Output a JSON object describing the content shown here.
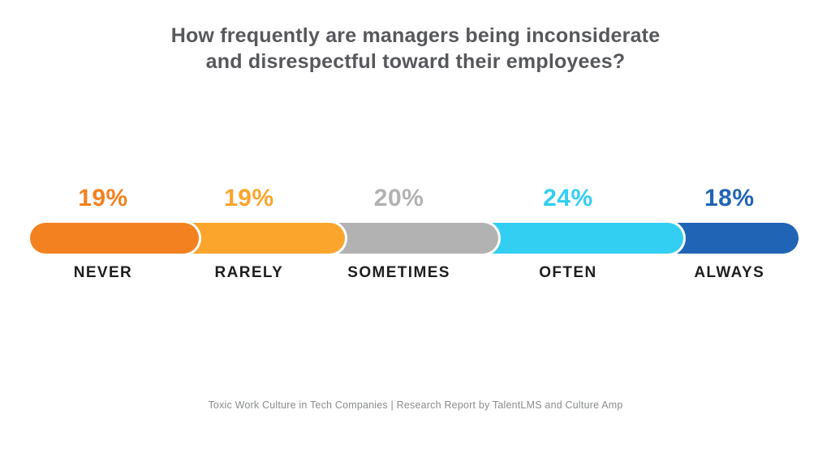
{
  "title_lines": [
    "How frequently are managers being inconsiderate",
    "and disrespectful toward their employees?"
  ],
  "caption": "Toxic Work Culture in Tech Companies | Research Report by TalentLMS and Culture Amp",
  "colors": {
    "background": "#FFFFFF",
    "title_text": "#57585C",
    "category_text": "#1E1E1E",
    "caption_text": "#8A8C8E",
    "segment_divider": "#FFFFFF"
  },
  "chart_data": {
    "type": "bar",
    "subtype": "segmented-horizontal-100-percent",
    "title": "How frequently are managers being inconsiderate and disrespectful toward their employees?",
    "categories": [
      "NEVER",
      "RARELY",
      "SOMETIMES",
      "OFTEN",
      "ALWAYS"
    ],
    "values": [
      19,
      19,
      20,
      24,
      18
    ],
    "value_labels": [
      "19%",
      "19%",
      "20%",
      "24%",
      "18%"
    ],
    "segment_colors": [
      "#F48120",
      "#FBA52D",
      "#B2B2B2",
      "#33CFF2",
      "#2064B6"
    ],
    "total": 100,
    "xlabel": "",
    "ylabel": "",
    "legend": "none",
    "grid": false,
    "source": "Toxic Work Culture in Tech Companies | Research Report by TalentLMS and Culture Amp"
  }
}
